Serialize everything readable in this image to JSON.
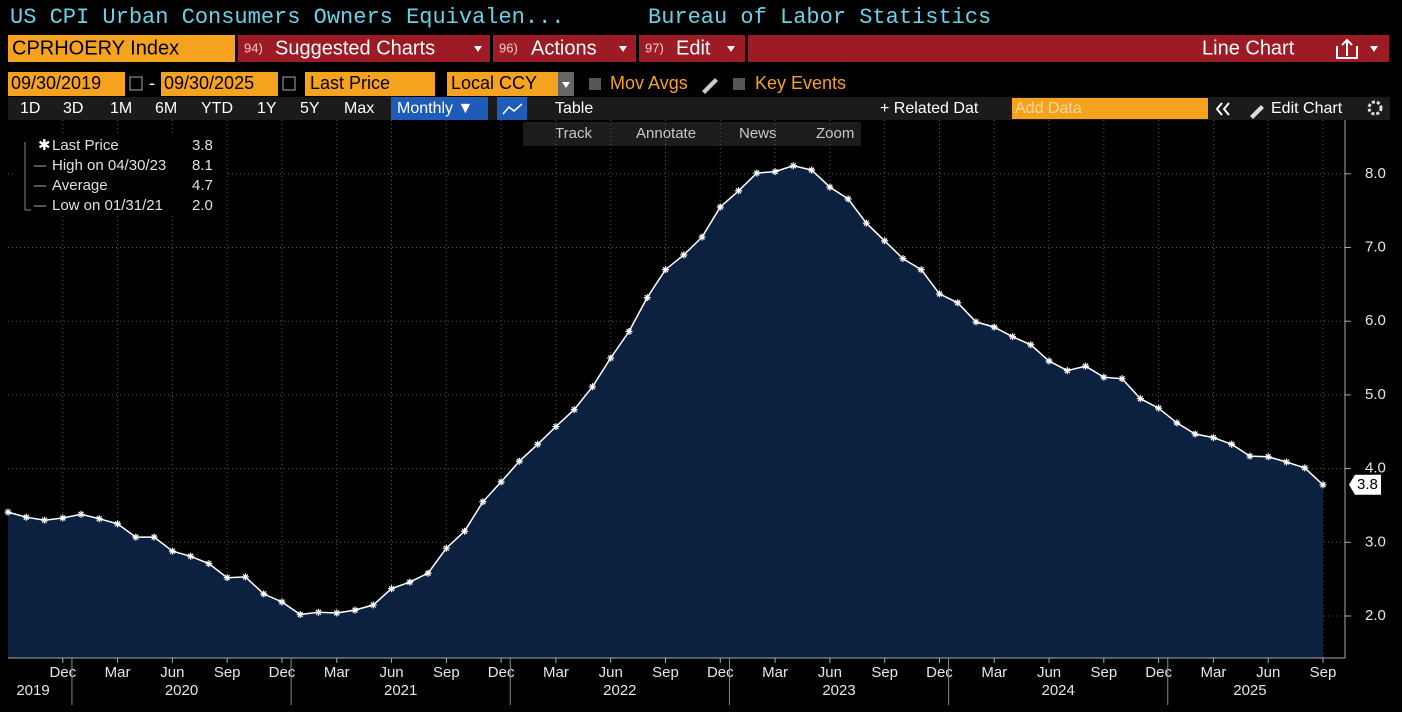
{
  "header": {
    "title": "US CPI Urban Consumers Owners Equivalen...",
    "source": "Bureau of Labor Statistics"
  },
  "toolbar": {
    "ticker": "CPRHOERY Index",
    "menus": [
      {
        "code": "94)",
        "label": "Suggested Charts"
      },
      {
        "code": "96)",
        "label": "Actions"
      },
      {
        "code": "97)",
        "label": "Edit"
      }
    ],
    "chart_kind": "Line Chart",
    "start_date": "09/30/2019",
    "date_separator": "-",
    "end_date": "09/30/2025",
    "field": "Last Price",
    "currency": "Local CCY",
    "options": [
      "Mov Avgs",
      "Key Events"
    ],
    "ranges": [
      "1D",
      "3D",
      "1M",
      "6M",
      "YTD",
      "1Y",
      "5Y",
      "Max"
    ],
    "frequency": "Monthly ▼",
    "table": "Table",
    "related": "+ Related Dat",
    "add_data": "Add Data",
    "edit_chart": "Edit Chart",
    "tools": [
      "Track",
      "Annotate",
      "News",
      "Zoom"
    ]
  },
  "chart_data": {
    "type": "area",
    "categories": [
      null,
      null,
      null,
      "Dec",
      null,
      null,
      "Mar",
      null,
      null,
      "Jun",
      null,
      null,
      "Sep",
      null,
      null,
      "Dec",
      null,
      null,
      "Mar",
      null,
      null,
      "Jun",
      null,
      null,
      "Sep",
      null,
      null,
      "Dec",
      null,
      null,
      "Mar",
      null,
      null,
      "Jun",
      null,
      null,
      "Sep",
      null,
      null,
      "Dec",
      null,
      null,
      "Mar",
      null,
      null,
      "Jun",
      null,
      null,
      "Sep",
      null,
      null,
      "Dec",
      null,
      null,
      "Mar",
      null,
      null,
      "Jun",
      null,
      null,
      "Sep",
      null,
      null,
      "Dec",
      null,
      null,
      "Mar",
      null,
      null,
      "Jun",
      null,
      null,
      "Sep"
    ],
    "year_labels": [
      "2019",
      "2020",
      "2021",
      "2022",
      "2023",
      "2024",
      "2025"
    ],
    "series": [
      {
        "name": "Last Price",
        "color": "#ffffff",
        "fill": "#0c2140",
        "values": [
          3.41,
          3.34,
          3.3,
          3.33,
          3.38,
          3.32,
          3.25,
          3.07,
          3.07,
          2.88,
          2.81,
          2.71,
          2.52,
          2.53,
          2.3,
          2.19,
          2.02,
          2.05,
          2.04,
          2.08,
          2.15,
          2.37,
          2.46,
          2.58,
          2.92,
          3.15,
          3.55,
          3.82,
          4.1,
          4.33,
          4.57,
          4.8,
          5.11,
          5.5,
          5.86,
          6.32,
          6.7,
          6.9,
          7.14,
          7.55,
          7.77,
          8.01,
          8.03,
          8.11,
          8.05,
          7.82,
          7.66,
          7.33,
          7.09,
          6.85,
          6.7,
          6.37,
          6.25,
          5.99,
          5.92,
          5.79,
          5.68,
          5.46,
          5.33,
          5.39,
          5.24,
          5.22,
          4.95,
          4.82,
          4.62,
          4.47,
          4.42,
          4.33,
          4.17,
          4.16,
          4.09,
          4.01,
          3.78
        ]
      }
    ],
    "ylim": [
      1.43,
      8.73
    ],
    "yticks": [
      {
        "value": 2,
        "label": "2.0"
      },
      {
        "value": 3,
        "label": "3.0"
      },
      {
        "value": 4,
        "label": "4.0"
      },
      {
        "value": 5,
        "label": "5.0"
      },
      {
        "value": 6,
        "label": "6.0"
      },
      {
        "value": 7,
        "label": "7.0"
      },
      {
        "value": 8,
        "label": "8.0"
      }
    ],
    "grid": true,
    "legend": [
      {
        "value": "3.8"
      },
      {
        "label": "High on 04/30/23",
        "value": "8.1"
      },
      {
        "label": "Average",
        "value": "4.7"
      },
      {
        "label": "Low on 01/31/21",
        "value": "2.0"
      }
    ]
  }
}
